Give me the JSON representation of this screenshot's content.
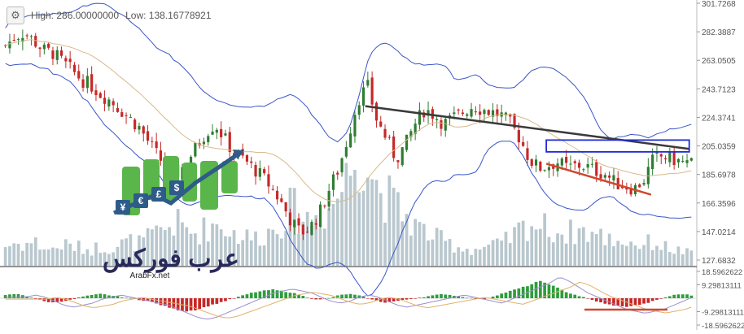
{
  "header": {
    "settings_icon": "gear-icon",
    "high_text": "High: 286.00000000",
    "low_text": "Low: 138.16778921"
  },
  "logo": {
    "wordmark": "عرب فوركس",
    "url_text": "ArabFx.net",
    "currency_glyphs": [
      "¥",
      "€",
      "£",
      "$"
    ]
  },
  "colors": {
    "up_candle": "#2e7d32",
    "down_candle": "#c62828",
    "bollinger": "#3a56c7",
    "ma": "#d8b98a",
    "volume": "#b9c7ce",
    "trendline_dark": "#3a3a3a",
    "trendline_red": "#d0482e",
    "rect_blue": "#1f2bd6",
    "hist_up": "#2e9d3c",
    "hist_down": "#c82828",
    "osc_line": "#9b8fd0",
    "osc_signal": "#e0b36a"
  },
  "chart_data": [
    {
      "type": "candlestick",
      "title": "",
      "y_axis_ticks": [
        "301.7268",
        "282.3887",
        "263.0505",
        "243.7123",
        "224.3741",
        "205.0359",
        "185.6978",
        "166.3596",
        "147.0214",
        "127.6832"
      ],
      "ylim": [
        127.6832,
        301.7268
      ],
      "price_path": [
        273,
        279,
        282,
        276,
        270,
        268,
        262,
        256,
        250,
        246,
        240,
        236,
        230,
        224,
        218,
        208,
        198,
        190,
        186,
        194,
        204,
        214,
        220,
        210,
        200,
        196,
        190,
        184,
        176,
        166,
        154,
        146,
        150,
        160,
        176,
        190,
        212,
        236,
        246,
        222,
        210,
        196,
        206,
        220,
        230,
        226,
        220,
        224,
        228,
        232,
        230,
        228,
        226,
        220,
        210,
        196,
        190,
        192,
        194,
        190,
        192,
        191,
        188,
        186,
        180,
        178,
        176,
        182,
        196,
        198,
        196,
        194,
        193
      ],
      "volume_path": [
        24,
        28,
        26,
        30,
        22,
        20,
        26,
        24,
        22,
        20,
        24,
        22,
        26,
        30,
        28,
        34,
        40,
        48,
        52,
        44,
        40,
        46,
        52,
        48,
        40,
        36,
        34,
        38,
        44,
        56,
        72,
        62,
        56,
        64,
        70,
        90,
        112,
        150,
        130,
        98,
        86,
        72,
        62,
        50,
        42,
        36,
        30,
        26,
        22,
        20,
        22,
        24,
        26,
        34,
        44,
        52,
        50,
        46,
        42,
        40,
        44,
        42,
        38,
        34,
        32,
        30,
        28,
        26,
        30,
        24,
        20,
        18,
        14
      ],
      "annotations": [
        {
          "type": "trendline",
          "color": "trendline_dark",
          "from": [
            38,
            232
          ],
          "to": [
            72,
            203
          ]
        },
        {
          "type": "trendline",
          "color": "trendline_red",
          "from": [
            57,
            193
          ],
          "to": [
            68,
            172
          ]
        },
        {
          "type": "rectangle",
          "color": "rect_blue",
          "x_range": [
            57,
            72
          ],
          "y_range": [
            201,
            209
          ]
        }
      ]
    },
    {
      "type": "histogram",
      "title": "",
      "y_axis_ticks": [
        "18.5962622",
        "9.29813111",
        "-9.29813111",
        "-18.5962622"
      ],
      "ylim": [
        -18.5962622,
        18.5962622
      ],
      "values_path": [
        2,
        3,
        2,
        0,
        -2,
        -3,
        -2,
        -1,
        1,
        2,
        3,
        2,
        1,
        0,
        -1,
        -2,
        -4,
        -6,
        -8,
        -9,
        -8,
        -6,
        -4,
        -2,
        0,
        2,
        4,
        5,
        6,
        5,
        4,
        2,
        0,
        -1,
        0,
        2,
        3,
        2,
        0,
        -2,
        -3,
        -2,
        -1,
        0,
        1,
        2,
        3,
        2,
        1,
        0,
        -1,
        1,
        3,
        5,
        7,
        9,
        12,
        10,
        7,
        4,
        2,
        0,
        -2,
        -4,
        -5,
        -6,
        -5,
        -4,
        -2,
        0,
        2,
        3,
        2
      ]
    }
  ]
}
